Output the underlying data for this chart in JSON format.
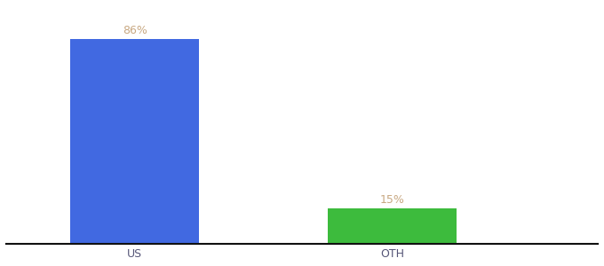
{
  "categories": [
    "US",
    "OTH"
  ],
  "values": [
    86,
    15
  ],
  "bar_colors": [
    "#4169e1",
    "#3dbb3d"
  ],
  "label_texts": [
    "86%",
    "15%"
  ],
  "label_color": "#c8a882",
  "ylim": [
    0,
    100
  ],
  "background_color": "#ffffff",
  "bar_width": 0.5,
  "label_fontsize": 9,
  "tick_fontsize": 9,
  "axis_line_color": "#111111",
  "x_positions": [
    1,
    2
  ],
  "xlim": [
    0.5,
    2.8
  ]
}
